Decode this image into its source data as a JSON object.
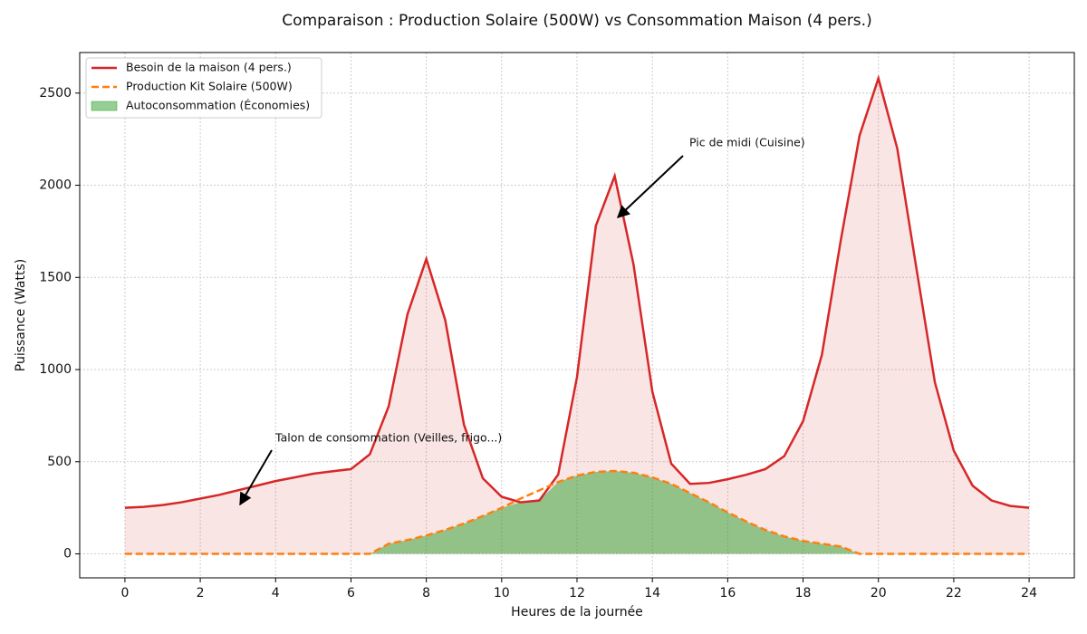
{
  "chart_data": {
    "type": "line",
    "title": "Comparaison : Production Solaire (500W) vs Consommation Maison (4 pers.)",
    "xlabel": "Heures de la journée",
    "ylabel": "Puissance (Watts)",
    "x": [
      0,
      0.5,
      1,
      1.5,
      2,
      2.5,
      3,
      3.5,
      4,
      4.5,
      5,
      5.5,
      6,
      6.5,
      7,
      7.5,
      8,
      8.5,
      9,
      9.5,
      10,
      10.5,
      11,
      11.5,
      12,
      12.5,
      13,
      13.5,
      14,
      14.5,
      15,
      15.5,
      16,
      16.5,
      17,
      17.5,
      18,
      18.5,
      19,
      19.5,
      20,
      20.5,
      21,
      21.5,
      22,
      22.5,
      23,
      23.5,
      24
    ],
    "series": [
      {
        "name": "Besoin de la maison (4 pers.)",
        "color": "#d62728",
        "style": "solid",
        "values": [
          250,
          255,
          265,
          280,
          300,
          320,
          345,
          370,
          395,
          415,
          435,
          448,
          460,
          540,
          800,
          1300,
          1600,
          1270,
          700,
          410,
          310,
          280,
          290,
          430,
          960,
          1780,
          2050,
          1570,
          880,
          490,
          380,
          385,
          405,
          430,
          460,
          530,
          720,
          1080,
          1700,
          2270,
          2580,
          2200,
          1560,
          930,
          560,
          370,
          290,
          260,
          250
        ]
      },
      {
        "name": "Production Kit Solaire (500W)",
        "color": "#ff7f0e",
        "style": "dashed",
        "values": [
          0,
          0,
          0,
          0,
          0,
          0,
          0,
          0,
          0,
          0,
          0,
          0,
          0,
          0,
          55,
          75,
          100,
          130,
          165,
          205,
          250,
          300,
          345,
          390,
          425,
          445,
          450,
          440,
          415,
          380,
          330,
          280,
          225,
          175,
          130,
          95,
          70,
          55,
          40,
          0,
          0,
          0,
          0,
          0,
          0,
          0,
          0,
          0,
          0
        ]
      },
      {
        "name": "Autoconsommation (Économies)",
        "color": "#2ca02c",
        "style": "area",
        "values": [
          0,
          0,
          0,
          0,
          0,
          0,
          0,
          0,
          0,
          0,
          0,
          0,
          0,
          0,
          55,
          75,
          100,
          130,
          165,
          205,
          250,
          280,
          290,
          390,
          425,
          445,
          450,
          440,
          415,
          380,
          330,
          280,
          225,
          175,
          130,
          95,
          70,
          55,
          40,
          0,
          0,
          0,
          0,
          0,
          0,
          0,
          0,
          0,
          0
        ]
      }
    ],
    "annotations": [
      "Pic de midi (Cuisine)",
      "Talon de consommation (Veilles, frigo...)"
    ],
    "xlim": [
      -1.2,
      25.2
    ],
    "ylim": [
      -130,
      2720
    ],
    "xticks": [
      0,
      2,
      4,
      6,
      8,
      10,
      12,
      14,
      16,
      18,
      20,
      22,
      24
    ],
    "yticks": [
      0,
      500,
      1000,
      1500,
      2000,
      2500
    ],
    "grid": true,
    "legend": "upper left"
  }
}
